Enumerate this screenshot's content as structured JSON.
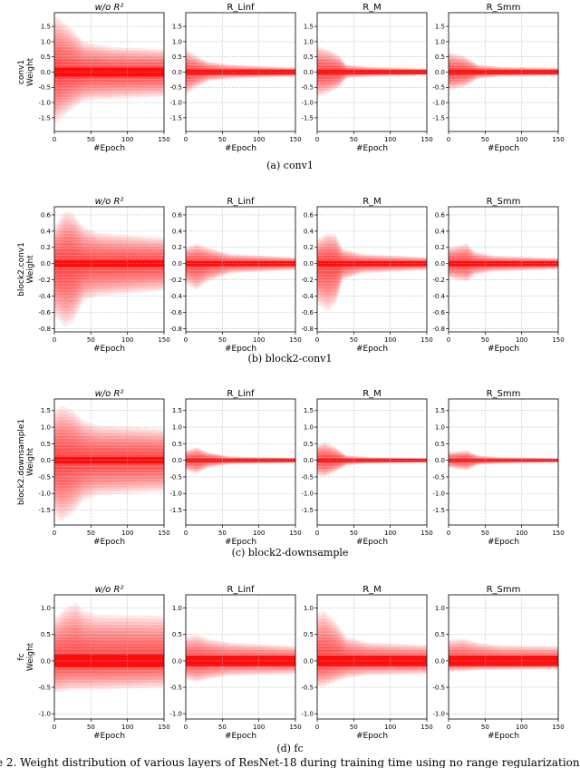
{
  "chart_data": [
    {
      "type": "area",
      "caption": "(a) conv1",
      "ylabel": "conv1\nWeight",
      "xlabel": "#Epoch",
      "xticks": [
        0,
        50,
        100,
        150
      ],
      "yticks": [
        -1.5,
        -1.0,
        -0.5,
        0.0,
        0.5,
        1.0,
        1.5
      ],
      "ylim": [
        -1.95,
        1.95
      ],
      "xlim": [
        0,
        150
      ],
      "panels": [
        {
          "title": "w/o R²",
          "italic": true,
          "envelope": [
            [
              0,
              1.85
            ],
            [
              5,
              1.8
            ],
            [
              20,
              1.5
            ],
            [
              40,
              1.0
            ],
            [
              60,
              0.9
            ],
            [
              80,
              0.82
            ],
            [
              150,
              0.75
            ]
          ],
          "envelope_low": [
            [
              0,
              -1.7
            ],
            [
              10,
              -1.5
            ],
            [
              25,
              -1.2
            ],
            [
              40,
              -0.95
            ],
            [
              60,
              -0.9
            ],
            [
              150,
              -0.8
            ]
          ],
          "core": 0.15
        },
        {
          "title": "R_Linf",
          "italic": false,
          "envelope": [
            [
              0,
              0.75
            ],
            [
              10,
              0.6
            ],
            [
              30,
              0.35
            ],
            [
              60,
              0.25
            ],
            [
              150,
              0.15
            ]
          ],
          "envelope_low": [
            [
              0,
              -0.75
            ],
            [
              10,
              -0.55
            ],
            [
              30,
              -0.3
            ],
            [
              60,
              -0.22
            ],
            [
              150,
              -0.15
            ]
          ],
          "core": 0.08
        },
        {
          "title": "R_M",
          "italic": false,
          "envelope": [
            [
              0,
              0.85
            ],
            [
              15,
              0.75
            ],
            [
              30,
              0.55
            ],
            [
              40,
              0.25
            ],
            [
              70,
              0.18
            ],
            [
              150,
              0.12
            ]
          ],
          "envelope_low": [
            [
              0,
              -0.8
            ],
            [
              15,
              -0.7
            ],
            [
              30,
              -0.5
            ],
            [
              40,
              -0.2
            ],
            [
              70,
              -0.15
            ],
            [
              150,
              -0.1
            ]
          ],
          "core": 0.07
        },
        {
          "title": "R_Smm",
          "italic": false,
          "envelope": [
            [
              0,
              0.65
            ],
            [
              20,
              0.55
            ],
            [
              40,
              0.25
            ],
            [
              70,
              0.18
            ],
            [
              150,
              0.14
            ]
          ],
          "envelope_low": [
            [
              0,
              -0.6
            ],
            [
              20,
              -0.5
            ],
            [
              40,
              -0.22
            ],
            [
              70,
              -0.15
            ],
            [
              150,
              -0.12
            ]
          ],
          "core": 0.07
        }
      ]
    },
    {
      "type": "area",
      "caption": "(b) block2-conv1",
      "ylabel": "block2.conv1\nWeight",
      "xlabel": "#Epoch",
      "xticks": [
        0,
        50,
        100,
        150
      ],
      "yticks": [
        -0.8,
        -0.6,
        -0.4,
        -0.2,
        0.0,
        0.2,
        0.4,
        0.6
      ],
      "ylim": [
        -0.84,
        0.7
      ],
      "xlim": [
        0,
        150
      ],
      "panels": [
        {
          "title": "w/o R²",
          "italic": true,
          "envelope": [
            [
              0,
              0.45
            ],
            [
              15,
              0.65
            ],
            [
              25,
              0.62
            ],
            [
              40,
              0.45
            ],
            [
              60,
              0.38
            ],
            [
              150,
              0.32
            ]
          ],
          "envelope_low": [
            [
              0,
              -0.65
            ],
            [
              15,
              -0.78
            ],
            [
              25,
              -0.72
            ],
            [
              40,
              -0.45
            ],
            [
              60,
              -0.4
            ],
            [
              150,
              -0.33
            ]
          ],
          "core": 0.04
        },
        {
          "title": "R_Linf",
          "italic": false,
          "envelope": [
            [
              0,
              0.2
            ],
            [
              15,
              0.25
            ],
            [
              30,
              0.2
            ],
            [
              60,
              0.12
            ],
            [
              150,
              0.08
            ]
          ],
          "envelope_low": [
            [
              0,
              -0.25
            ],
            [
              15,
              -0.32
            ],
            [
              30,
              -0.22
            ],
            [
              60,
              -0.12
            ],
            [
              150,
              -0.08
            ]
          ],
          "core": 0.03
        },
        {
          "title": "R_M",
          "italic": false,
          "envelope": [
            [
              0,
              0.3
            ],
            [
              15,
              0.38
            ],
            [
              25,
              0.36
            ],
            [
              35,
              0.18
            ],
            [
              60,
              0.12
            ],
            [
              150,
              0.08
            ]
          ],
          "envelope_low": [
            [
              0,
              -0.5
            ],
            [
              15,
              -0.58
            ],
            [
              25,
              -0.5
            ],
            [
              35,
              -0.2
            ],
            [
              60,
              -0.12
            ],
            [
              150,
              -0.08
            ]
          ],
          "core": 0.03
        },
        {
          "title": "R_Smm",
          "italic": false,
          "envelope": [
            [
              0,
              0.2
            ],
            [
              25,
              0.25
            ],
            [
              35,
              0.15
            ],
            [
              60,
              0.1
            ],
            [
              150,
              0.07
            ]
          ],
          "envelope_low": [
            [
              0,
              -0.18
            ],
            [
              25,
              -0.22
            ],
            [
              35,
              -0.14
            ],
            [
              60,
              -0.1
            ],
            [
              150,
              -0.07
            ]
          ],
          "core": 0.03
        }
      ]
    },
    {
      "type": "area",
      "caption": "(c) block2-downsample",
      "ylabel": "block2.downsample1\nWeight",
      "xlabel": "#Epoch",
      "xticks": [
        0,
        50,
        100,
        150
      ],
      "yticks": [
        -1.5,
        -1.0,
        -0.5,
        0.0,
        0.5,
        1.0,
        1.5
      ],
      "ylim": [
        -1.95,
        1.85
      ],
      "xlim": [
        0,
        150
      ],
      "panels": [
        {
          "title": "w/o R²",
          "italic": true,
          "envelope": [
            [
              0,
              1.5
            ],
            [
              10,
              1.65
            ],
            [
              25,
              1.5
            ],
            [
              40,
              1.2
            ],
            [
              60,
              1.05
            ],
            [
              150,
              0.95
            ]
          ],
          "envelope_low": [
            [
              0,
              -1.65
            ],
            [
              10,
              -1.85
            ],
            [
              25,
              -1.6
            ],
            [
              40,
              -1.2
            ],
            [
              60,
              -1.05
            ],
            [
              150,
              -0.95
            ]
          ],
          "core": 0.1
        },
        {
          "title": "R_Linf",
          "italic": false,
          "envelope": [
            [
              0,
              0.3
            ],
            [
              15,
              0.4
            ],
            [
              30,
              0.25
            ],
            [
              60,
              0.12
            ],
            [
              150,
              0.08
            ]
          ],
          "envelope_low": [
            [
              0,
              -0.3
            ],
            [
              15,
              -0.4
            ],
            [
              30,
              -0.22
            ],
            [
              60,
              -0.12
            ],
            [
              150,
              -0.08
            ]
          ],
          "core": 0.05
        },
        {
          "title": "R_M",
          "italic": false,
          "envelope": [
            [
              0,
              0.45
            ],
            [
              10,
              0.55
            ],
            [
              25,
              0.4
            ],
            [
              40,
              0.15
            ],
            [
              70,
              0.1
            ],
            [
              150,
              0.07
            ]
          ],
          "envelope_low": [
            [
              0,
              -0.45
            ],
            [
              10,
              -0.5
            ],
            [
              25,
              -0.35
            ],
            [
              40,
              -0.15
            ],
            [
              70,
              -0.1
            ],
            [
              150,
              -0.07
            ]
          ],
          "core": 0.05
        },
        {
          "title": "R_Smm",
          "italic": false,
          "envelope": [
            [
              0,
              0.25
            ],
            [
              25,
              0.3
            ],
            [
              40,
              0.15
            ],
            [
              70,
              0.1
            ],
            [
              150,
              0.07
            ]
          ],
          "envelope_low": [
            [
              0,
              -0.22
            ],
            [
              25,
              -0.3
            ],
            [
              40,
              -0.14
            ],
            [
              70,
              -0.1
            ],
            [
              150,
              -0.07
            ]
          ],
          "core": 0.04
        }
      ]
    },
    {
      "type": "area",
      "caption": "(d) fc",
      "ylabel": "fc\nWeight",
      "xlabel": "#Epoch",
      "xticks": [
        0,
        50,
        100,
        150
      ],
      "yticks": [
        -1.0,
        -0.5,
        0.0,
        0.5,
        1.0
      ],
      "ylim": [
        -1.1,
        1.25
      ],
      "xlim": [
        0,
        150
      ],
      "panels": [
        {
          "title": "w/o R²",
          "italic": true,
          "envelope": [
            [
              0,
              0.8
            ],
            [
              15,
              1.0
            ],
            [
              30,
              1.1
            ],
            [
              40,
              0.95
            ],
            [
              60,
              0.88
            ],
            [
              150,
              0.85
            ]
          ],
          "envelope_low": [
            [
              0,
              -0.6
            ],
            [
              20,
              -0.55
            ],
            [
              40,
              -0.55
            ],
            [
              150,
              -0.5
            ]
          ],
          "core": 0.12
        },
        {
          "title": "R_Linf",
          "italic": false,
          "envelope": [
            [
              0,
              0.45
            ],
            [
              15,
              0.5
            ],
            [
              30,
              0.42
            ],
            [
              60,
              0.35
            ],
            [
              150,
              0.28
            ]
          ],
          "envelope_low": [
            [
              0,
              -0.35
            ],
            [
              15,
              -0.4
            ],
            [
              30,
              -0.35
            ],
            [
              60,
              -0.28
            ],
            [
              150,
              -0.25
            ]
          ],
          "core": 0.1
        },
        {
          "title": "R_M",
          "italic": false,
          "envelope": [
            [
              0,
              0.9
            ],
            [
              10,
              0.95
            ],
            [
              25,
              0.75
            ],
            [
              40,
              0.45
            ],
            [
              70,
              0.35
            ],
            [
              150,
              0.3
            ]
          ],
          "envelope_low": [
            [
              0,
              -0.5
            ],
            [
              10,
              -0.48
            ],
            [
              25,
              -0.4
            ],
            [
              40,
              -0.32
            ],
            [
              70,
              -0.27
            ],
            [
              150,
              -0.25
            ]
          ],
          "core": 0.1
        },
        {
          "title": "R_Smm",
          "italic": false,
          "envelope": [
            [
              0,
              0.4
            ],
            [
              20,
              0.42
            ],
            [
              40,
              0.35
            ],
            [
              70,
              0.3
            ],
            [
              150,
              0.28
            ]
          ],
          "envelope_low": [
            [
              0,
              -0.2
            ],
            [
              20,
              -0.2
            ],
            [
              40,
              -0.18
            ],
            [
              150,
              -0.16
            ]
          ],
          "core": 0.1
        }
      ]
    }
  ],
  "footer_text": "e 2. Weight distribution of various layers of ResNet-18 during training time using no range regularization an",
  "colors": {
    "band": "#ff0000",
    "core": "#ff0000",
    "grid": "#b0b0b0",
    "axis": "#000000"
  }
}
